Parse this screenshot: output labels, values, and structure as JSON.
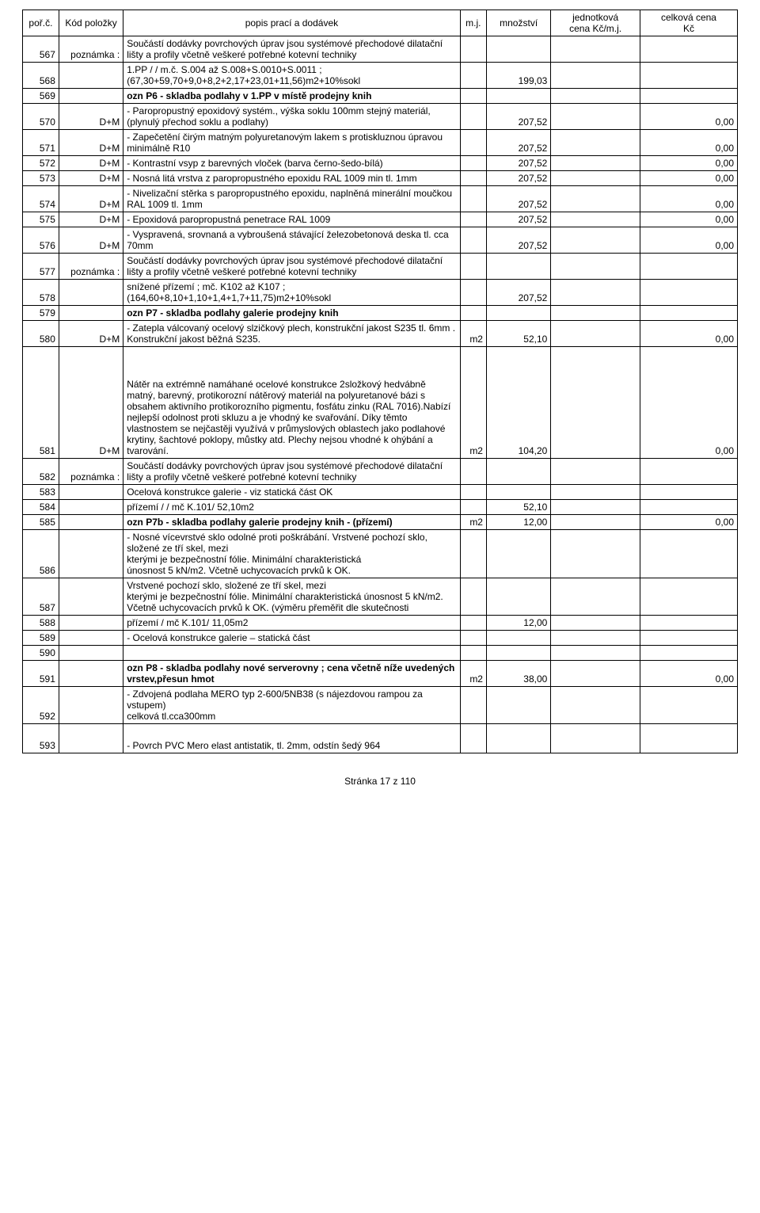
{
  "header": {
    "col0": "poř.č.",
    "col1": "Kód položky",
    "col2": "popis prací a dodávek",
    "col3": "m.j.",
    "col4": "množství",
    "col5a": "jednotková",
    "col5b": "cena  Kč/m.j.",
    "col6a": "celková cena",
    "col6b": "Kč"
  },
  "rows": [
    {
      "n": "567",
      "code": "poznámka :",
      "desc": "Součástí dodávky povrchových úprav jsou systémové přechodové dilatační lišty a profily včetně veškeré potřebné kotevní techniky"
    },
    {
      "n": "568",
      "desc": "1.PP /  / m.č. S.004 až S.008+S.0010+S.0011 ; (67,30+59,70+9,0+8,2+2,17+23,01+11,56)m2+10%sokl",
      "qty": "199,03"
    },
    {
      "n": "569",
      "desc": "ozn P6 - skladba podlahy v 1.PP v místě prodejny knih",
      "bold": true
    },
    {
      "n": "570",
      "code": "D+M",
      "desc": " - Paropropustný epoxidový systém., výška soklu 100mm  stejný materiál,(plynulý přechod soklu a podlahy)",
      "qty": "207,52",
      "total": "0,00"
    },
    {
      "n": "571",
      "code": "D+M",
      "desc": " - Zapečetění čirým matným polyuretanovým lakem s protiskluznou úpravou minimálně R10",
      "qty": "207,52",
      "total": "0,00"
    },
    {
      "n": "572",
      "code": "D+M",
      "desc": " - Kontrastní vsyp z barevných vloček (barva černo-šedo-bílá)",
      "qty": "207,52",
      "total": "0,00"
    },
    {
      "n": "573",
      "code": "D+M",
      "desc": " - Nosná litá vrstva z paropropustného epoxidu RAL 1009   min tl. 1mm",
      "qty": "207,52",
      "total": "0,00"
    },
    {
      "n": "574",
      "code": "D+M",
      "desc": " - Nivelizační stěrka s paropropustného epoxidu, naplněná minerální moučkou RAL 1009  tl. 1mm",
      "qty": "207,52",
      "total": "0,00"
    },
    {
      "n": "575",
      "code": "D+M",
      "desc": " - Epoxidová paropropustná penetrace RAL 1009",
      "qty": "207,52",
      "total": "0,00"
    },
    {
      "n": "576",
      "code": "D+M",
      "desc": " - Vyspravená, srovnaná a vybroušená stávající železobetonová deska tl. cca 70mm",
      "qty": "207,52",
      "total": "0,00"
    },
    {
      "n": "577",
      "code": "poznámka :",
      "desc": "Součástí dodávky povrchových úprav jsou systémové přechodové dilatační lišty a profily včetně veškeré potřebné kotevní techniky"
    },
    {
      "n": "578",
      "desc": "snížené přízemí ; mč. K102 až K107 ; (164,60+8,10+1,10+1,4+1,7+11,75)m2+10%sokl",
      "qty": "207,52"
    },
    {
      "n": "579",
      "desc": "ozn P7 - skladba podlahy galerie prodejny knih",
      "bold": true
    },
    {
      "n": "580",
      "code": "D+M",
      "desc": " - Zatepla válcovaný ocelový slzičkový plech, konstrukční jakost S235  tl. 6mm . Konstrukční jakost běžná S235.",
      "mj": "m2",
      "qty": "52,10",
      "total": "0,00"
    },
    {
      "n": "581",
      "code": "D+M",
      "desc": " Nátěr na extrémně namáhané ocelové konstrukce  2složkový hedvábně matný, barevný, protikorozní nátěrový materiál na polyuretanové bázi s obsahem aktivního protikorozního pigmentu, fosfátu zinku (RAL 7016).Nabízí nejlepší odolnost proti skluzu a je vhodný ke svařování. Díky těmto vlastnostem se nejčastěji využívá v průmyslových oblastech jako podlahové krytiny, šachtové poklopy, můstky atd. Plechy nejsou vhodné k ohýbání a tvarování.",
      "mj": "m2",
      "qty": "104,20",
      "total": "0,00",
      "pad": true
    },
    {
      "n": "582",
      "code": "poznámka :",
      "desc": "Součástí dodávky povrchových úprav jsou systémové přechodové dilatační lišty a profily včetně veškeré potřebné kotevní techniky"
    },
    {
      "n": "583",
      "desc": "Ocelová konstrukce galerie - viz statická část OK"
    },
    {
      "n": "584",
      "desc": "přízemí /  / mč K.101/ 52,10m2",
      "qty": "52,10"
    },
    {
      "n": "585",
      "desc": "ozn P7b - skladba podlahy galerie prodejny knih - (přízemí)",
      "bold": true,
      "mj": "m2",
      "qty": "12,00",
      "total": "0,00"
    },
    {
      "n": "586",
      "desc": " - Nosné vícevrstvé sklo odolné proti poškrábání. Vrstvené pochozí sklo, složené ze tří skel, mezi\nkterými je bezpečnostní fólie. Minimální charakteristická\núnosnost 5 kN/m2. Včetně uchycovacích prvků k OK."
    },
    {
      "n": "587",
      "desc": "Vrstvené pochozí sklo, složené ze tří skel, mezi\nkterými je bezpečnostní fólie. Minimální charakteristická únosnost 5 kN/m2. Včetně uchycovacích prvků k OK. (výměru přeměřit dle skutečnosti"
    },
    {
      "n": "588",
      "desc": "přízemí / mč K.101/  11,05m2",
      "qty": "12,00"
    },
    {
      "n": "589",
      "desc": " - Ocelová konstrukce galerie – statická část"
    },
    {
      "n": "590",
      "desc": ""
    },
    {
      "n": "591",
      "desc": "ozn P8 - skladba podlahy nové serverovny ;  cena včetně níže uvedených vrstev,přesun hmot",
      "bold": true,
      "mj": "m2",
      "qty": "38,00",
      "total": "0,00"
    },
    {
      "n": "592",
      "desc": " - Zdvojená podlaha MERO typ 2-600/5NB38 (s nájezdovou rampou za vstupem)\ncelková  tl.cca300mm"
    },
    {
      "n": "593",
      "desc": " - Povrch PVC Mero elast antistatik, tl. 2mm, odstín šedý 964",
      "pad2": true
    }
  ],
  "footer": "Stránka 17 z 110"
}
